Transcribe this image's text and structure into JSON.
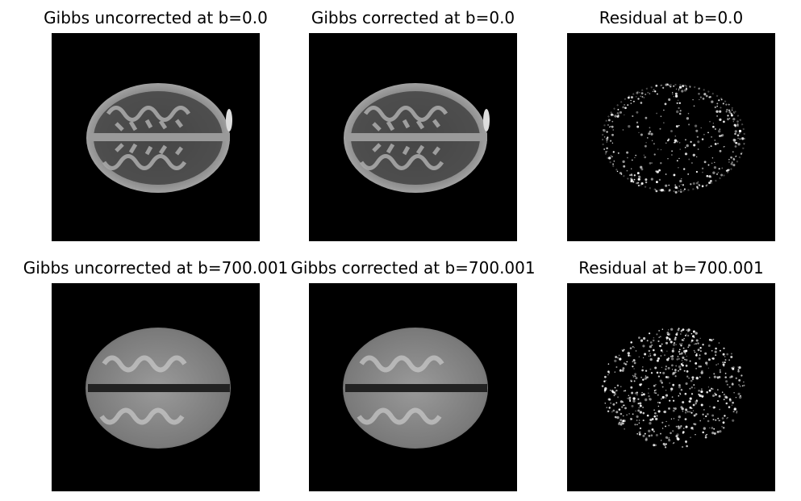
{
  "figure": {
    "panels": [
      {
        "title": "Gibbs uncorrected at b=0.0",
        "kind": "b0"
      },
      {
        "title": "Gibbs corrected at b=0.0",
        "kind": "b0"
      },
      {
        "title": "Residual at b=0.0",
        "kind": "residual"
      },
      {
        "title": "Gibbs uncorrected at b=700.001",
        "kind": "dwi"
      },
      {
        "title": "Gibbs corrected at b=700.001",
        "kind": "dwi"
      },
      {
        "title": "Residual at b=700.001",
        "kind": "residual"
      }
    ]
  }
}
